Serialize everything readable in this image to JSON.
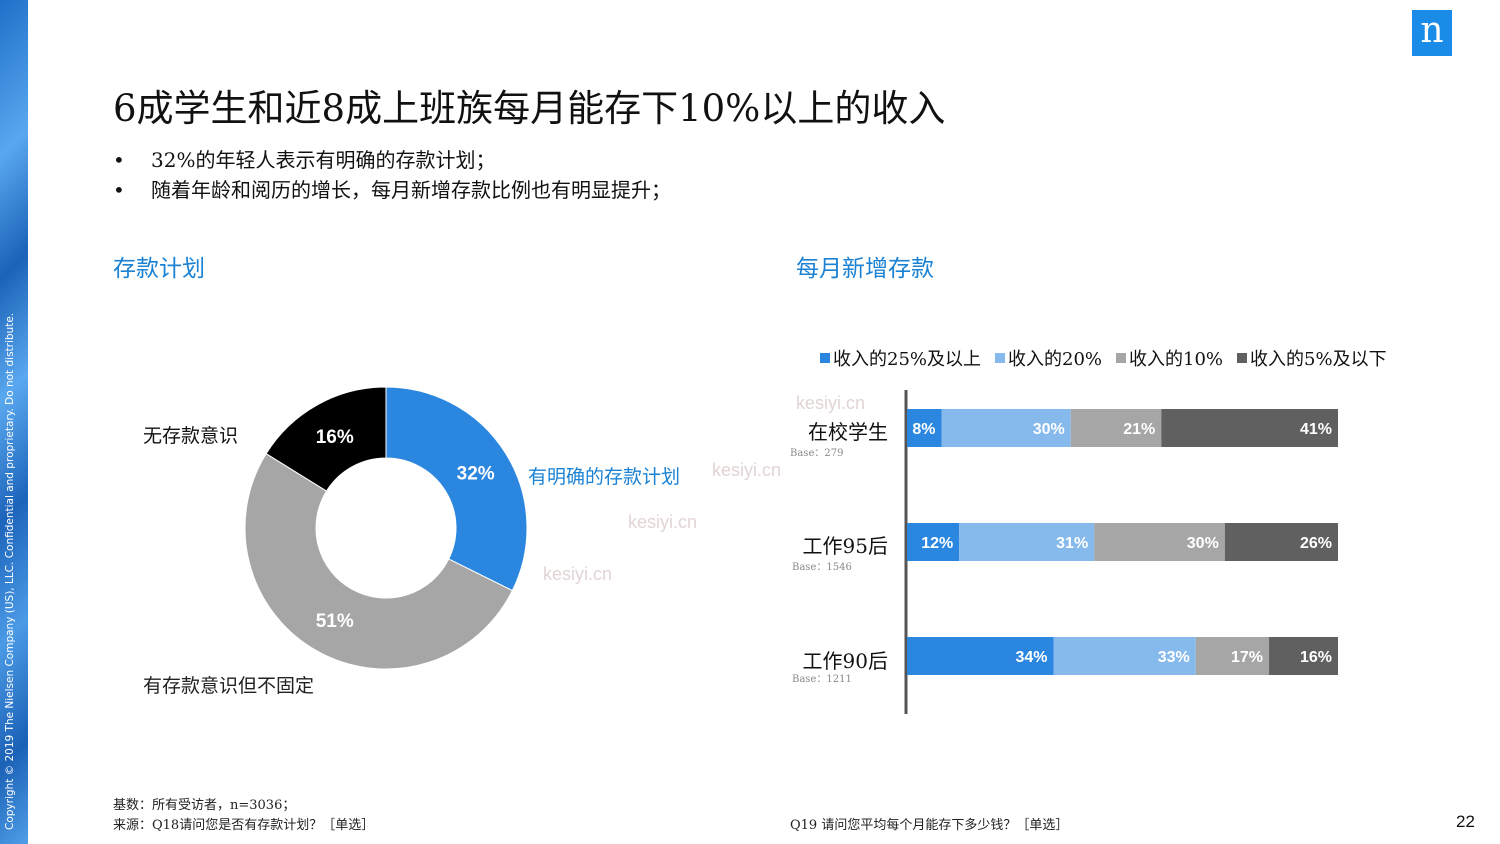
{
  "header": {
    "title": "6成学生和近8成上班族每月能存下10%以上的收入",
    "copyright": "Copyright © 2019 The Nielsen Company (US), LLC. Confidential and proprietary. Do not distribute.",
    "logo": "n",
    "page_number": "22"
  },
  "bullets": [
    "32%的年轻人表示有明确的存款计划；",
    "随着年龄和阅历的增长，每月新增存款比例也有明显提升；"
  ],
  "bullet_marker": "•",
  "sections": {
    "left_title": "存款计划",
    "right_title": "每月新增存款"
  },
  "watermark": "kesiyi.cn",
  "footnotes": {
    "base": "基数：所有受访者，n=3036；",
    "source_left": "来源：Q18请问您是否有存款计划？［单选］",
    "source_right": "Q19 请问您平均每个月能存下多少钱？［单选］"
  },
  "colors": {
    "accent_blue": "#2b86df",
    "light_blue": "#86b9ec",
    "gray": "#a6a6a6",
    "dark_gray": "#606060",
    "black": "#000000",
    "section_title": "#1b82d4"
  },
  "chart_data": [
    {
      "type": "pie",
      "style": "donut",
      "title": "存款计划",
      "slices": [
        {
          "label": "有明确的存款计划",
          "value": 32,
          "display": "32%",
          "color": "#2b86df",
          "label_color": "#1b82d4"
        },
        {
          "label": "有存款意识但不固定",
          "value": 51,
          "display": "51%",
          "color": "#a6a6a6",
          "label_color": "#222222"
        },
        {
          "label": "无存款意识",
          "value": 16,
          "display": "16%",
          "color": "#000000",
          "label_color": "#111111"
        }
      ]
    },
    {
      "type": "bar",
      "orientation": "horizontal",
      "stacked": true,
      "title": "每月新增存款",
      "legend_position": "top",
      "categories": [
        "在校学生",
        "工作95后",
        "工作90后"
      ],
      "bases": [
        "Base：279",
        "Base：1546",
        "Base：1211"
      ],
      "series": [
        {
          "name": "收入的25%及以上",
          "color": "#2b86df",
          "values": [
            8,
            12,
            34
          ]
        },
        {
          "name": "收入的20%",
          "color": "#86b9ec",
          "values": [
            30,
            31,
            33
          ]
        },
        {
          "name": "收入的10%",
          "color": "#a6a6a6",
          "values": [
            21,
            30,
            17
          ]
        },
        {
          "name": "收入的5%及以下",
          "color": "#606060",
          "values": [
            41,
            26,
            16
          ]
        }
      ]
    }
  ]
}
